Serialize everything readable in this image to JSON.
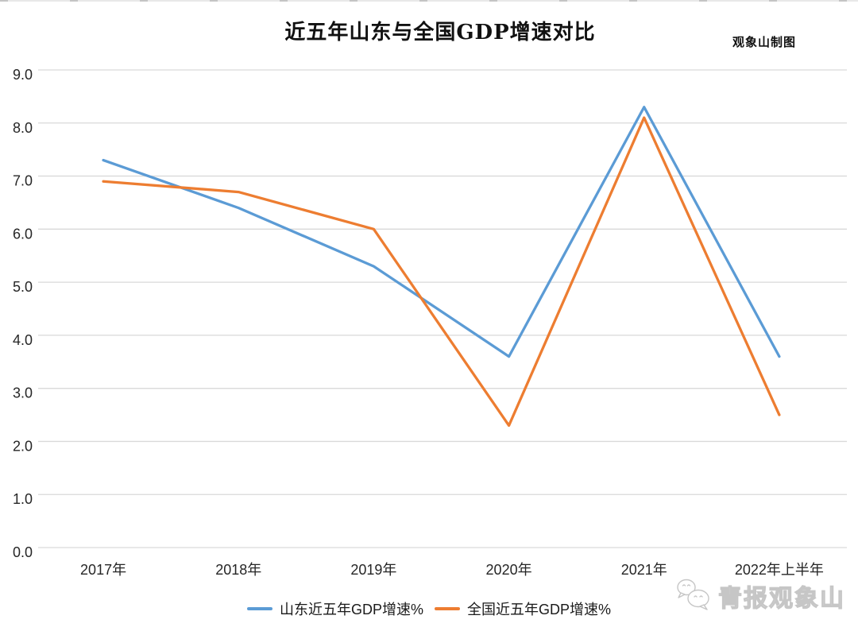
{
  "page": {
    "title": "近五年山东与全国GDP增速对比",
    "credit": "观象山制图",
    "watermark": "青报观象山",
    "watermark_icon": "wechat-icon"
  },
  "colors": {
    "shandong_line": "#5B9BD5",
    "national_line": "#ED7D31",
    "gridline": "#D9D9D9",
    "axis_text": "#262626",
    "bottom_bar": "#d6d9de"
  },
  "chart_data": {
    "type": "line",
    "title": "近五年山东与全国GDP增速对比",
    "categories": [
      "2017年",
      "2018年",
      "2019年",
      "2020年",
      "2021年",
      "2022年上半年"
    ],
    "series": [
      {
        "name": "山东近五年GDP增速%",
        "color": "#5B9BD5",
        "values": [
          7.3,
          6.4,
          5.3,
          3.6,
          8.3,
          3.6
        ]
      },
      {
        "name": "全国近五年GDP增速%",
        "color": "#ED7D31",
        "values": [
          6.9,
          6.7,
          6.0,
          2.3,
          8.1,
          2.5
        ]
      }
    ],
    "xlabel": "",
    "ylabel": "",
    "ylim": [
      0.0,
      9.0
    ],
    "ytick_step": 1.0,
    "ytick_labels": [
      "0.0",
      "1.0",
      "2.0",
      "3.0",
      "4.0",
      "5.0",
      "6.0",
      "7.0",
      "8.0",
      "9.0"
    ],
    "grid": true,
    "legend_position": "bottom"
  }
}
